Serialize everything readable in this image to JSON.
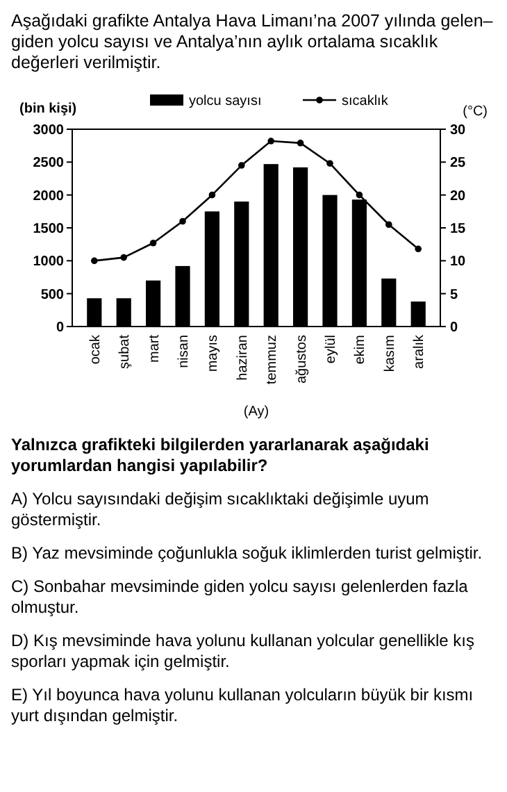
{
  "chart_data": {
    "type": "bar",
    "title": "Aşağıdaki grafikte Antalya Hava Limanı’na 2007 yılında gelen–giden yolcu sayısı ve Antalya’nın aylık ortalama sıcaklık değerleri verilmiştir.",
    "xlabel": "(Ay)",
    "ylabel": "(bin kişi)",
    "y2label": "(°C)",
    "categories": [
      "ocak",
      "şubat",
      "mart",
      "nisan",
      "mayıs",
      "haziran",
      "temmuz",
      "ağustos",
      "eylül",
      "ekim",
      "kasım",
      "aralık"
    ],
    "series": [
      {
        "name": "yolcu sayısı",
        "color": "#000000",
        "values": [
          430,
          430,
          700,
          920,
          1750,
          1900,
          2470,
          2420,
          2000,
          1930,
          730,
          380
        ]
      },
      {
        "name": "sıcaklık",
        "type": "line",
        "axis": "y2",
        "color": "#000000",
        "values": [
          10,
          10.5,
          12.7,
          16,
          20,
          24.5,
          28.2,
          27.9,
          24.8,
          20,
          15.5,
          11.8
        ]
      }
    ],
    "ylim": [
      0,
      3000
    ],
    "yticks": [
      0,
      500,
      1000,
      1500,
      2000,
      2500,
      3000
    ],
    "y2lim": [
      0,
      30
    ],
    "y2ticks": [
      0,
      5,
      10,
      15,
      20,
      25,
      30
    ],
    "marker": "circle",
    "line_style": "solid",
    "legend": "top",
    "grid": false,
    "annotations": [
      "Yalnızca grafikteki bilgilerden yararlanarak aşağıdaki yorumlardan hangisi yapılabilir?",
      "A) Yolcu sayısındaki değişim sıcaklıktaki değişimle uyum göstermiştir.",
      "B) Yaz mevsiminde çoğunlukla soğuk iklimlerden turist gelmiştir.",
      "C) Sonbahar mevsiminde giden yolcu sayısı gelenlerden fazla olmuştur.",
      "D) Kış mevsiminde hava yolunu kullanan yolcular genellikle kış sporları yapmak için gelmiştir.",
      "E) Yıl boyunca hava yolunu kullanan yolcuların büyük bir kısmı yurt dışından gelmiştir."
    ]
  }
}
